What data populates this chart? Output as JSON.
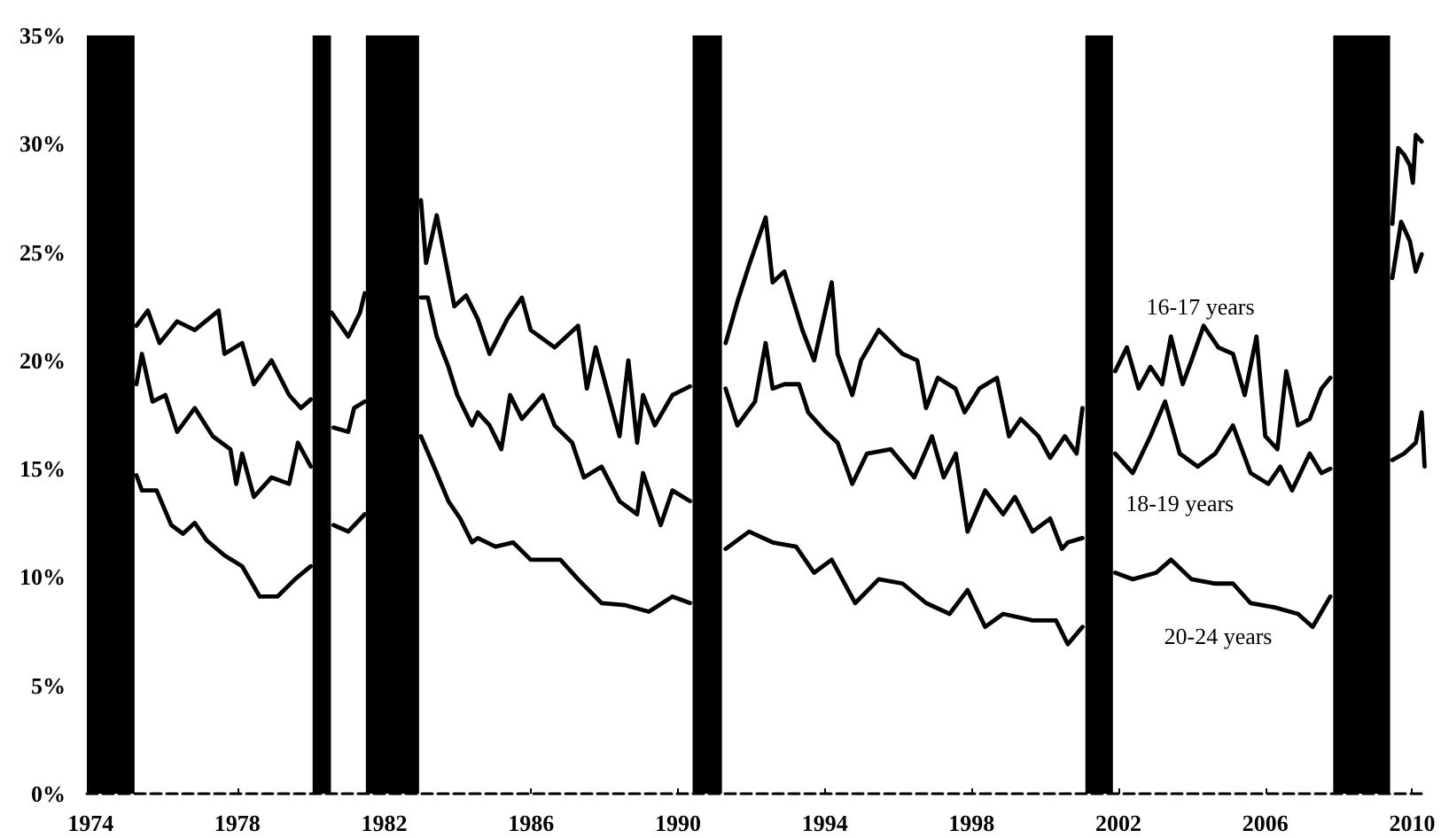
{
  "chart_data": {
    "type": "line",
    "xlim": [
      1973.9,
      2010.4
    ],
    "xticks": [
      1974,
      1978,
      1982,
      1986,
      1990,
      1994,
      1998,
      2002,
      2006,
      2010
    ],
    "ylim": [
      0,
      35
    ],
    "yticks": [
      {
        "value": 0,
        "label": "0%"
      },
      {
        "value": 5,
        "label": "5%"
      },
      {
        "value": 10,
        "label": "10%"
      },
      {
        "value": 15,
        "label": "15%"
      },
      {
        "value": 20,
        "label": "20%"
      },
      {
        "value": 25,
        "label": "25%"
      },
      {
        "value": 30,
        "label": "30%"
      },
      {
        "value": 35,
        "label": "35%"
      }
    ],
    "grid": false,
    "legend": false,
    "bands": [
      {
        "axis": "x",
        "from": 1973.9,
        "to": 1975.2,
        "color": "#000000"
      },
      {
        "axis": "x",
        "from": 1980.05,
        "to": 1980.55,
        "color": "#000000"
      },
      {
        "axis": "x",
        "from": 1981.5,
        "to": 1982.95,
        "color": "#000000"
      },
      {
        "axis": "x",
        "from": 1990.4,
        "to": 1991.2,
        "color": "#000000"
      },
      {
        "axis": "x",
        "from": 2001.1,
        "to": 2001.85,
        "color": "#000000"
      },
      {
        "axis": "x",
        "from": 2007.85,
        "to": 2009.4,
        "color": "#000000"
      }
    ],
    "series": [
      {
        "name": "16-17 years",
        "color": "#000000",
        "x": [
          1975.25,
          1975.56,
          1975.88,
          1976.36,
          1976.84,
          1977.49,
          1977.65,
          1978.13,
          1978.45,
          1978.93,
          1979.41,
          1979.73,
          1980.0,
          1980.3,
          1980.57,
          1981.02,
          1981.34,
          1981.47,
          1982.2,
          1983.0,
          1983.14,
          1983.43,
          1983.91,
          1984.23,
          1984.55,
          1984.87,
          1985.35,
          1985.75,
          1985.99,
          1986.64,
          1987.28,
          1987.52,
          1987.76,
          1988.41,
          1988.65,
          1988.89,
          1989.05,
          1989.37,
          1989.85,
          1990.33,
          1990.8,
          1991.3,
          1991.62,
          1991.94,
          1992.39,
          1992.58,
          1992.9,
          1993.39,
          1993.71,
          1994.19,
          1994.35,
          1994.75,
          1994.99,
          1995.47,
          1996.12,
          1996.52,
          1996.76,
          1997.08,
          1997.56,
          1997.81,
          1998.21,
          1998.69,
          1999.02,
          1999.34,
          1999.82,
          2000.14,
          2000.54,
          2000.86,
          2001.02,
          2001.5,
          2001.91,
          2002.23,
          2002.55,
          2002.87,
          2003.19,
          2003.43,
          2003.75,
          2003.99,
          2004.32,
          2004.72,
          2005.12,
          2005.44,
          2005.76,
          2006.0,
          2006.33,
          2006.57,
          2006.89,
          2007.21,
          2007.53,
          2007.77,
          2008.6,
          2009.46,
          2009.62,
          2009.78,
          2009.94,
          2010.02,
          2010.1,
          2010.26
        ],
        "values": [
          21.6,
          22.3,
          20.8,
          21.8,
          21.4,
          22.3,
          20.3,
          20.8,
          18.9,
          20.0,
          18.4,
          17.8,
          18.2,
          null,
          22.2,
          21.1,
          22.2,
          23.1,
          null,
          27.4,
          24.5,
          26.7,
          22.5,
          23.0,
          21.9,
          20.3,
          21.9,
          22.9,
          21.4,
          20.6,
          21.6,
          18.7,
          20.6,
          16.5,
          20.0,
          16.2,
          18.4,
          17.0,
          18.4,
          18.8,
          null,
          20.8,
          22.7,
          24.4,
          26.6,
          23.6,
          24.1,
          21.4,
          20.0,
          23.6,
          20.3,
          18.4,
          20.0,
          21.4,
          20.3,
          20.0,
          17.8,
          19.2,
          18.7,
          17.6,
          18.7,
          19.2,
          16.5,
          17.3,
          16.5,
          15.5,
          16.5,
          15.7,
          17.8,
          null,
          19.5,
          20.6,
          18.7,
          19.7,
          18.9,
          21.1,
          18.9,
          20.0,
          21.6,
          20.6,
          20.3,
          18.4,
          21.1,
          16.5,
          15.9,
          19.5,
          17.0,
          17.3,
          18.7,
          19.2,
          null,
          26.3,
          29.8,
          29.5,
          29.0,
          28.2,
          30.4,
          30.1
        ]
      },
      {
        "name": "18-19 years",
        "color": "#000000",
        "x": [
          1975.25,
          1975.4,
          1975.69,
          1976.04,
          1976.36,
          1976.84,
          1977.33,
          1977.81,
          1977.97,
          1978.13,
          1978.45,
          1978.93,
          1979.41,
          1979.65,
          1980.0,
          1980.3,
          1980.62,
          1981.02,
          1981.18,
          1981.47,
          1982.2,
          1983.0,
          1983.19,
          1983.43,
          1983.75,
          1983.99,
          1984.39,
          1984.55,
          1984.87,
          1985.19,
          1985.43,
          1985.75,
          1986.32,
          1986.64,
          1987.12,
          1987.44,
          1987.92,
          1988.41,
          1988.89,
          1989.05,
          1989.53,
          1989.85,
          1990.33,
          1990.8,
          1991.3,
          1991.62,
          1992.1,
          1992.39,
          1992.58,
          1992.9,
          1993.3,
          1993.55,
          1994.03,
          1994.35,
          1994.75,
          1995.15,
          1995.8,
          1996.44,
          1996.92,
          1997.24,
          1997.57,
          1997.89,
          1998.37,
          1998.86,
          1999.18,
          1999.66,
          2000.14,
          2000.46,
          2000.62,
          2001.02,
          2001.5,
          2001.91,
          2002.39,
          2002.87,
          2003.27,
          2003.67,
          2004.16,
          2004.64,
          2005.12,
          2005.6,
          2006.08,
          2006.41,
          2006.73,
          2007.21,
          2007.53,
          2007.77,
          2008.6,
          2009.46,
          2009.7,
          2009.94,
          2010.1,
          2010.26
        ],
        "values": [
          18.9,
          20.3,
          18.1,
          18.4,
          16.7,
          17.8,
          16.5,
          15.9,
          14.3,
          15.7,
          13.7,
          14.6,
          14.3,
          16.2,
          15.1,
          null,
          16.9,
          16.7,
          17.8,
          18.1,
          null,
          22.9,
          22.9,
          21.1,
          19.7,
          18.4,
          17.0,
          17.6,
          17.0,
          15.9,
          18.4,
          17.3,
          18.4,
          17.0,
          16.2,
          14.6,
          15.1,
          13.5,
          12.9,
          14.8,
          12.4,
          14.0,
          13.5,
          null,
          18.7,
          17.0,
          18.1,
          20.8,
          18.7,
          18.9,
          18.9,
          17.6,
          16.7,
          16.2,
          14.3,
          15.7,
          15.9,
          14.6,
          16.5,
          14.6,
          15.7,
          12.1,
          14.0,
          12.9,
          13.7,
          12.1,
          12.7,
          11.3,
          11.6,
          11.8,
          null,
          15.7,
          14.8,
          16.5,
          18.1,
          15.7,
          15.1,
          15.7,
          17.0,
          14.8,
          14.3,
          15.1,
          14.0,
          15.7,
          14.8,
          15.0,
          null,
          23.8,
          26.4,
          25.5,
          24.1,
          24.9
        ]
      },
      {
        "name": "20-24 years",
        "color": "#000000",
        "x": [
          1975.25,
          1975.4,
          1975.8,
          1976.2,
          1976.52,
          1976.84,
          1977.16,
          1977.65,
          1978.13,
          1978.61,
          1979.09,
          1979.57,
          1980.0,
          1980.3,
          1980.62,
          1981.02,
          1981.47,
          1982.2,
          1983.0,
          1983.43,
          1983.75,
          1984.07,
          1984.39,
          1984.55,
          1985.03,
          1985.51,
          1985.99,
          1986.8,
          1987.28,
          1987.92,
          1988.57,
          1989.21,
          1989.85,
          1990.33,
          1990.8,
          1991.3,
          1991.94,
          1992.58,
          1993.22,
          1993.71,
          1994.19,
          1994.83,
          1995.47,
          1996.12,
          1996.76,
          1997.4,
          1997.89,
          1998.37,
          1998.86,
          1999.66,
          2000.3,
          2000.62,
          2001.02,
          2001.5,
          2001.91,
          2002.39,
          2003.03,
          2003.43,
          2003.99,
          2004.64,
          2005.12,
          2005.6,
          2006.25,
          2006.89,
          2007.29,
          2007.77,
          2008.6,
          2009.46,
          2009.78,
          2010.1,
          2010.26,
          2010.34
        ],
        "values": [
          14.7,
          14.0,
          14.0,
          12.4,
          12.0,
          12.5,
          11.7,
          11.0,
          10.5,
          9.1,
          9.1,
          9.9,
          10.5,
          null,
          12.4,
          12.1,
          12.9,
          null,
          16.5,
          14.8,
          13.5,
          12.7,
          11.6,
          11.8,
          11.4,
          11.6,
          10.8,
          10.8,
          9.9,
          8.8,
          8.7,
          8.4,
          9.1,
          8.8,
          null,
          11.3,
          12.1,
          11.6,
          11.4,
          10.2,
          10.8,
          8.8,
          9.9,
          9.7,
          8.8,
          8.3,
          9.4,
          7.7,
          8.3,
          8.0,
          8.0,
          6.9,
          7.7,
          null,
          10.2,
          9.9,
          10.2,
          10.8,
          9.9,
          9.7,
          9.7,
          8.8,
          8.6,
          8.3,
          7.7,
          9.1,
          null,
          15.4,
          15.7,
          16.2,
          17.6,
          15.1
        ]
      }
    ]
  }
}
